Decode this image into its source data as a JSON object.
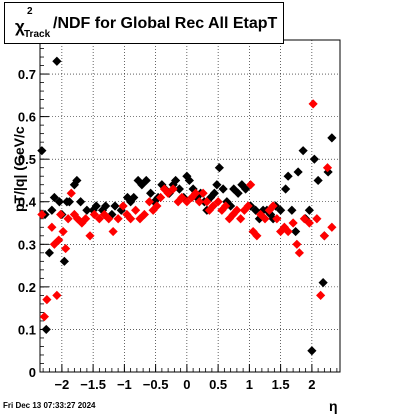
{
  "title": {
    "chi": "χ",
    "sup": "2",
    "sub": "Track",
    "main": "/NDF for Global Rec All EtapT"
  },
  "datestamp": "Fri Dec 13 07:33:27 2024",
  "chart_data": {
    "type": "scatter",
    "title": "χ²_Track/NDF for Global Rec All EtapT",
    "xlabel": "η",
    "ylabel": "pT/|q| (GeV/c",
    "xlim": [
      -2.35,
      2.45
    ],
    "ylim": [
      0,
      0.78
    ],
    "xticks": [
      -2,
      -1.5,
      -1,
      -0.5,
      0,
      0.5,
      1,
      1.5,
      2
    ],
    "xtick_labels": [
      "−2",
      "−1.5",
      "−1",
      "−0.5",
      "0",
      "0.5",
      "1",
      "1.5",
      "2"
    ],
    "yticks": [
      0,
      0.1,
      0.2,
      0.3,
      0.4,
      0.5,
      0.6,
      0.7
    ],
    "ytick_labels": [
      "0",
      "0.1",
      "0.2",
      "0.3",
      "0.4",
      "0.5",
      "0.6",
      "0.7"
    ],
    "grid": true,
    "series": [
      {
        "color": "#000000",
        "points": [
          [
            -2.32,
            0.52
          ],
          [
            -2.27,
            0.37
          ],
          [
            -2.25,
            0.1
          ],
          [
            -2.2,
            0.28
          ],
          [
            -2.16,
            0.38
          ],
          [
            -2.12,
            0.41
          ],
          [
            -2.08,
            0.73
          ],
          [
            -2.04,
            0.4
          ],
          [
            -2.0,
            0.37
          ],
          [
            -1.96,
            0.26
          ],
          [
            -1.92,
            0.4
          ],
          [
            -1.88,
            0.4
          ],
          [
            -1.8,
            0.44
          ],
          [
            -1.76,
            0.45
          ],
          [
            -1.7,
            0.4
          ],
          [
            -1.6,
            0.38
          ],
          [
            -1.5,
            0.38
          ],
          [
            -1.45,
            0.39
          ],
          [
            -1.35,
            0.38
          ],
          [
            -1.3,
            0.39
          ],
          [
            -1.2,
            0.37
          ],
          [
            -1.15,
            0.39
          ],
          [
            -1.05,
            0.38
          ],
          [
            -0.95,
            0.41
          ],
          [
            -0.9,
            0.4
          ],
          [
            -0.85,
            0.41
          ],
          [
            -0.78,
            0.45
          ],
          [
            -0.72,
            0.44
          ],
          [
            -0.65,
            0.45
          ],
          [
            -0.58,
            0.42
          ],
          [
            -0.52,
            0.4
          ],
          [
            -0.46,
            0.41
          ],
          [
            -0.4,
            0.44
          ],
          [
            -0.35,
            0.43
          ],
          [
            -0.28,
            0.42
          ],
          [
            -0.22,
            0.44
          ],
          [
            -0.18,
            0.45
          ],
          [
            -0.12,
            0.43
          ],
          [
            -0.05,
            0.41
          ],
          [
            0.0,
            0.46
          ],
          [
            0.04,
            0.45
          ],
          [
            0.1,
            0.43
          ],
          [
            0.16,
            0.41
          ],
          [
            0.22,
            0.42
          ],
          [
            0.28,
            0.4
          ],
          [
            0.32,
            0.38
          ],
          [
            0.38,
            0.41
          ],
          [
            0.44,
            0.42
          ],
          [
            0.48,
            0.44
          ],
          [
            0.52,
            0.48
          ],
          [
            0.58,
            0.43
          ],
          [
            0.64,
            0.4
          ],
          [
            0.7,
            0.39
          ],
          [
            0.75,
            0.43
          ],
          [
            0.82,
            0.42
          ],
          [
            0.88,
            0.44
          ],
          [
            0.94,
            0.43
          ],
          [
            1.02,
            0.39
          ],
          [
            1.1,
            0.38
          ],
          [
            1.16,
            0.36
          ],
          [
            1.22,
            0.38
          ],
          [
            1.28,
            0.38
          ],
          [
            1.34,
            0.37
          ],
          [
            1.38,
            0.36
          ],
          [
            1.42,
            0.39
          ],
          [
            1.5,
            0.38
          ],
          [
            1.58,
            0.43
          ],
          [
            1.62,
            0.46
          ],
          [
            1.68,
            0.38
          ],
          [
            1.74,
            0.33
          ],
          [
            1.78,
            0.47
          ],
          [
            1.86,
            0.52
          ],
          [
            1.9,
            0.36
          ],
          [
            1.96,
            0.38
          ],
          [
            2.0,
            0.05
          ],
          [
            2.04,
            0.5
          ],
          [
            2.1,
            0.45
          ],
          [
            2.18,
            0.21
          ],
          [
            2.2,
            0.32
          ],
          [
            2.26,
            0.47
          ],
          [
            2.32,
            0.55
          ]
        ]
      },
      {
        "color": "#ff0000",
        "points": [
          [
            -2.32,
            0.37
          ],
          [
            -2.28,
            0.13
          ],
          [
            -2.24,
            0.17
          ],
          [
            -2.16,
            0.34
          ],
          [
            -2.12,
            0.3
          ],
          [
            -2.08,
            0.18
          ],
          [
            -2.05,
            0.31
          ],
          [
            -2.02,
            0.37
          ],
          [
            -1.98,
            0.33
          ],
          [
            -1.94,
            0.29
          ],
          [
            -1.9,
            0.36
          ],
          [
            -1.85,
            0.42
          ],
          [
            -1.8,
            0.37
          ],
          [
            -1.75,
            0.36
          ],
          [
            -1.68,
            0.35
          ],
          [
            -1.62,
            0.36
          ],
          [
            -1.55,
            0.32
          ],
          [
            -1.48,
            0.37
          ],
          [
            -1.4,
            0.36
          ],
          [
            -1.32,
            0.37
          ],
          [
            -1.25,
            0.36
          ],
          [
            -1.18,
            0.33
          ],
          [
            -1.1,
            0.36
          ],
          [
            -1.02,
            0.39
          ],
          [
            -0.96,
            0.37
          ],
          [
            -0.9,
            0.36
          ],
          [
            -0.82,
            0.38
          ],
          [
            -0.75,
            0.36
          ],
          [
            -0.68,
            0.37
          ],
          [
            -0.6,
            0.4
          ],
          [
            -0.54,
            0.38
          ],
          [
            -0.48,
            0.39
          ],
          [
            -0.42,
            0.41
          ],
          [
            -0.36,
            0.43
          ],
          [
            -0.3,
            0.42
          ],
          [
            -0.22,
            0.43
          ],
          [
            -0.14,
            0.4
          ],
          [
            -0.08,
            0.41
          ],
          [
            0.0,
            0.4
          ],
          [
            0.08,
            0.41
          ],
          [
            0.14,
            0.42
          ],
          [
            0.2,
            0.4
          ],
          [
            0.26,
            0.42
          ],
          [
            0.32,
            0.4
          ],
          [
            0.36,
            0.38
          ],
          [
            0.42,
            0.39
          ],
          [
            0.5,
            0.4
          ],
          [
            0.56,
            0.38
          ],
          [
            0.62,
            0.39
          ],
          [
            0.68,
            0.36
          ],
          [
            0.74,
            0.37
          ],
          [
            0.8,
            0.38
          ],
          [
            0.86,
            0.36
          ],
          [
            0.92,
            0.38
          ],
          [
            0.98,
            0.39
          ],
          [
            1.02,
            0.44
          ],
          [
            1.06,
            0.33
          ],
          [
            1.12,
            0.32
          ],
          [
            1.18,
            0.37
          ],
          [
            1.25,
            0.36
          ],
          [
            1.32,
            0.38
          ],
          [
            1.38,
            0.39
          ],
          [
            1.44,
            0.36
          ],
          [
            1.5,
            0.33
          ],
          [
            1.56,
            0.34
          ],
          [
            1.62,
            0.33
          ],
          [
            1.7,
            0.35
          ],
          [
            1.76,
            0.3
          ],
          [
            1.8,
            0.28
          ],
          [
            1.88,
            0.36
          ],
          [
            1.96,
            0.35
          ],
          [
            2.02,
            0.63
          ],
          [
            2.08,
            0.36
          ],
          [
            2.14,
            0.18
          ],
          [
            2.2,
            0.32
          ],
          [
            2.25,
            0.48
          ],
          [
            2.32,
            0.34
          ]
        ]
      }
    ]
  }
}
